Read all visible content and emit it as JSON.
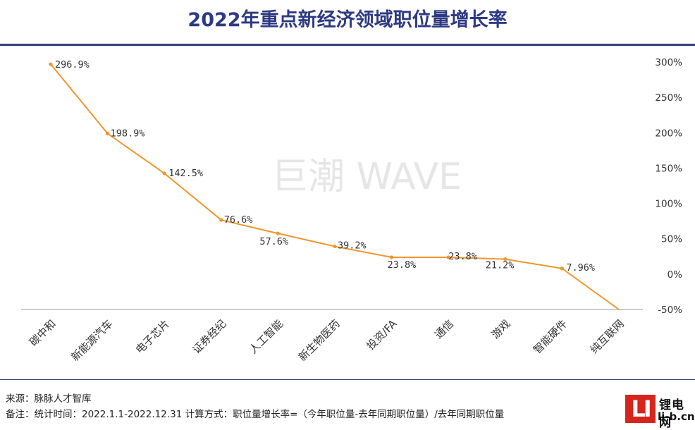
{
  "title": "2022年重点新经济领域职位量增长率",
  "watermark": "巨潮 WAVE",
  "footer": {
    "source": "来源：脉脉人才智库",
    "note": "备注：统计时间：2022.1.1-2022.12.31 计算方式：职位量增长率=（今年职位量-去年同期职位量）/去年同期职位量"
  },
  "logo": {
    "mark": "LI",
    "name": "锂电网",
    "url": "li-b.cn"
  },
  "colors": {
    "line": "#f0962a",
    "title": "#2d3a82",
    "rule": "#34407f",
    "watermark": "#e6e6e6",
    "logo": "#d6251d"
  },
  "chart_data": {
    "type": "line",
    "title": "2022年重点新经济领域职位量增长率",
    "categories": [
      "碳中和",
      "新能源汽车",
      "电子芯片",
      "证券经纪",
      "人工智能",
      "新生物医药",
      "投资/FA",
      "通信",
      "游戏",
      "智能硬件",
      "纯互联网"
    ],
    "values": [
      296.9,
      198.9,
      142.5,
      76.6,
      57.6,
      39.2,
      23.8,
      23.8,
      21.2,
      7.96,
      -50
    ],
    "data_labels": [
      "296.9%",
      "198.9%",
      "142.5%",
      "76.6%",
      "57.6%",
      "39.2%",
      "23.8%",
      "23.8%",
      "21.2%",
      "7.96%",
      ""
    ],
    "yaxis": {
      "position": "right",
      "ticks": [
        300,
        250,
        200,
        150,
        100,
        50,
        0,
        -50
      ],
      "tick_labels": [
        "300%",
        "250%",
        "200%",
        "150%",
        "100%",
        "50%",
        "0%",
        "-50%"
      ],
      "ylim": [
        -50,
        300
      ]
    },
    "grid": false,
    "xlabel": "",
    "ylabel": ""
  }
}
